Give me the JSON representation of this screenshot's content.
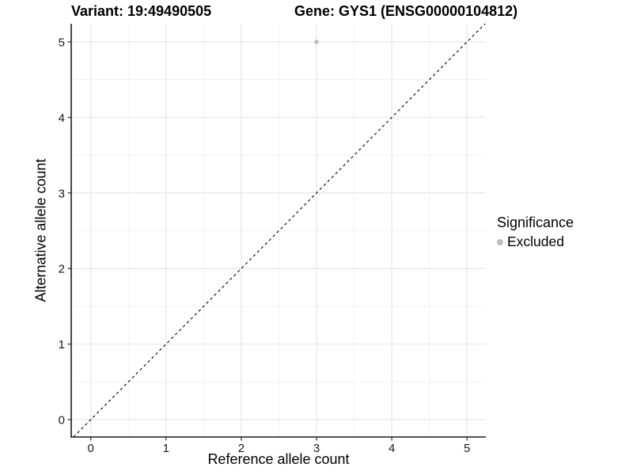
{
  "titles": {
    "variant": "Variant: 19:49490505",
    "gene": "Gene: GYS1 (ENSG00000104812)"
  },
  "chart_data": {
    "type": "scatter",
    "title": "Variant: 19:49490505    Gene: GYS1 (ENSG00000104812)",
    "xlabel": "Reference allele count",
    "ylabel": "Alternative allele count",
    "xlim": [
      -0.26,
      5.25
    ],
    "ylim": [
      -0.23,
      5.24
    ],
    "x_ticks": [
      0,
      1,
      2,
      3,
      4,
      5
    ],
    "y_ticks": [
      0,
      1,
      2,
      3,
      4,
      5
    ],
    "grid": true,
    "minor_grid_step": 0.5,
    "legend_position": "right",
    "series": [
      {
        "name": "Excluded",
        "color": "#bdbdbd",
        "point_radius": 2.8,
        "points": [
          {
            "x": 3,
            "y": 5
          }
        ]
      }
    ],
    "reference_line": {
      "kind": "identity y=x",
      "style": "dashed",
      "color": "#000000"
    }
  },
  "legend": {
    "title": "Significance",
    "items": [
      {
        "label": "Excluded",
        "color": "#bdbdbd"
      }
    ]
  },
  "colors": {
    "background": "#ffffff",
    "grid_major": "#e4e4e4",
    "grid_minor": "#f2f2f2",
    "axis_line": "#1a1a1a",
    "tick_text": "#1a1a1a",
    "point": "#bdbdbd",
    "reference_line": "#000000"
  }
}
